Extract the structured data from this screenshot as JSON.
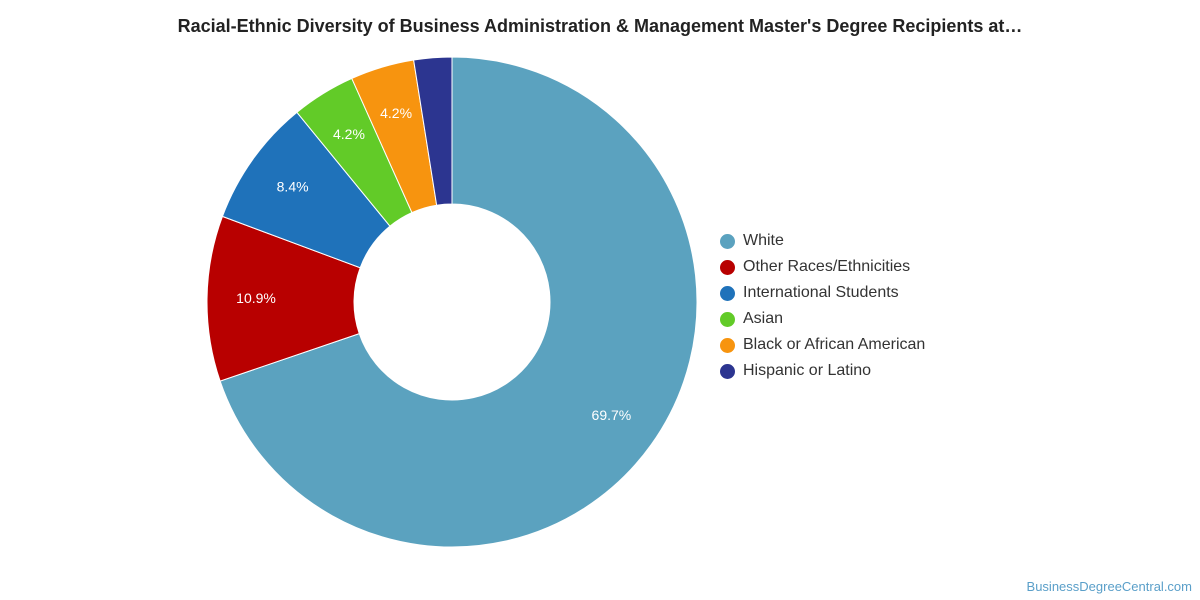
{
  "chart_data": {
    "type": "pie",
    "title": "Racial-Ethnic Diversity of Business Administration & Management Master's Degree Recipients at…",
    "legend_position": "right",
    "donut": true,
    "series": [
      {
        "name": "White",
        "value": 69.7,
        "label": "69.7%",
        "color": "#5ba2bf"
      },
      {
        "name": "Other Races/Ethnicities",
        "value": 10.9,
        "label": "10.9%",
        "color": "#b80000"
      },
      {
        "name": "International Students",
        "value": 8.4,
        "label": "8.4%",
        "color": "#1f72ba"
      },
      {
        "name": "Asian",
        "value": 4.2,
        "label": "4.2%",
        "color": "#62cb28"
      },
      {
        "name": "Black or African American",
        "value": 4.2,
        "label": "4.2%",
        "color": "#f7940f"
      },
      {
        "name": "Hispanic or Latino",
        "value": 2.5,
        "label": "",
        "color": "#2c3590"
      }
    ]
  },
  "watermark": "BusinessDegreeCentral.com"
}
